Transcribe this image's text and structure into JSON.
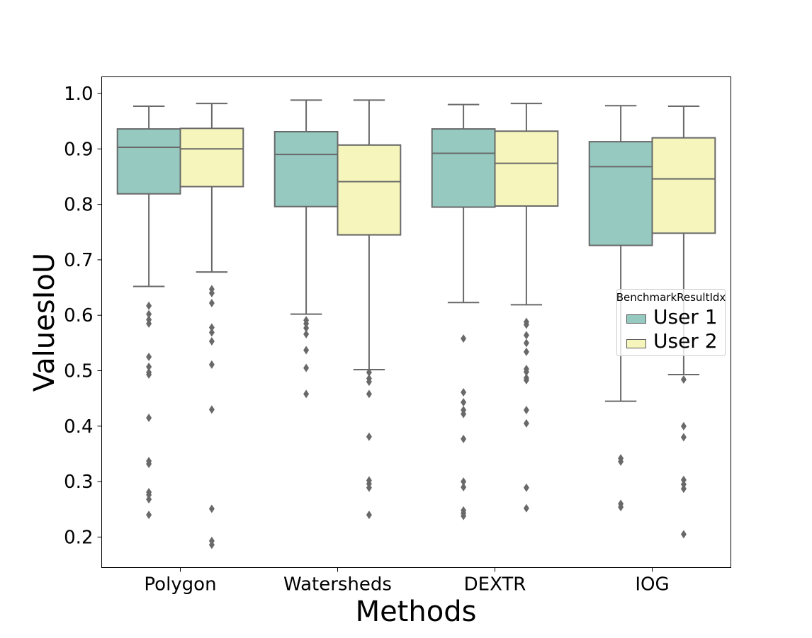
{
  "chart_data": {
    "type": "box",
    "title": "",
    "xlabel": "Methods",
    "ylabel": "ValuesIoU",
    "ylim": [
      0.145,
      1.03
    ],
    "yticks": [
      0.2,
      0.3,
      0.4,
      0.5,
      0.6,
      0.7,
      0.8,
      0.9,
      1.0
    ],
    "ytick_labels": [
      "0.2",
      "0.3",
      "0.4",
      "0.5",
      "0.6",
      "0.7",
      "0.8",
      "0.9",
      "1.0"
    ],
    "grid": false,
    "categories": [
      "Polygon",
      "Watersheds",
      "DEXTR",
      "IOG"
    ],
    "legend": {
      "title": "BenchmarkResultIdx",
      "position": "center-right"
    },
    "series": [
      {
        "name": "User 1",
        "color": "#96cac1",
        "boxes": [
          {
            "whisker_low": 0.652,
            "q1": 0.819,
            "median": 0.903,
            "q3": 0.936,
            "whisker_high": 0.977,
            "outliers": [
              0.617,
              0.602,
              0.592,
              0.585,
              0.525,
              0.507,
              0.497,
              0.493,
              0.415,
              0.337,
              0.332,
              0.281,
              0.276,
              0.268,
              0.24
            ]
          },
          {
            "whisker_low": 0.602,
            "q1": 0.796,
            "median": 0.89,
            "q3": 0.931,
            "whisker_high": 0.988,
            "outliers": [
              0.591,
              0.585,
              0.577,
              0.566,
              0.537,
              0.505,
              0.458
            ]
          },
          {
            "whisker_low": 0.623,
            "q1": 0.795,
            "median": 0.892,
            "q3": 0.936,
            "whisker_high": 0.98,
            "outliers": [
              0.558,
              0.461,
              0.443,
              0.429,
              0.422,
              0.377,
              0.3,
              0.29,
              0.248,
              0.243,
              0.238
            ]
          },
          {
            "whisker_low": 0.445,
            "q1": 0.726,
            "median": 0.868,
            "q3": 0.913,
            "whisker_high": 0.978,
            "outliers": [
              0.342,
              0.336,
              0.26,
              0.254
            ]
          }
        ]
      },
      {
        "name": "User 2",
        "color": "#f6f6bc",
        "boxes": [
          {
            "whisker_low": 0.678,
            "q1": 0.832,
            "median": 0.9,
            "q3": 0.937,
            "whisker_high": 0.982,
            "outliers": [
              0.647,
              0.64,
              0.622,
              0.578,
              0.569,
              0.553,
              0.511,
              0.43,
              0.251,
              0.193,
              0.186
            ]
          },
          {
            "whisker_low": 0.502,
            "q1": 0.745,
            "median": 0.841,
            "q3": 0.907,
            "whisker_high": 0.988,
            "outliers": [
              0.497,
              0.486,
              0.48,
              0.458,
              0.381,
              0.302,
              0.296,
              0.289,
              0.24
            ]
          },
          {
            "whisker_low": 0.619,
            "q1": 0.797,
            "median": 0.874,
            "q3": 0.932,
            "whisker_high": 0.982,
            "outliers": [
              0.588,
              0.583,
              0.564,
              0.55,
              0.534,
              0.503,
              0.498,
              0.487,
              0.483,
              0.429,
              0.405,
              0.289,
              0.252
            ]
          },
          {
            "whisker_low": 0.493,
            "q1": 0.748,
            "median": 0.846,
            "q3": 0.92,
            "whisker_high": 0.977,
            "outliers": [
              0.484,
              0.4,
              0.38,
              0.303,
              0.295,
              0.287,
              0.205
            ]
          }
        ]
      }
    ]
  }
}
